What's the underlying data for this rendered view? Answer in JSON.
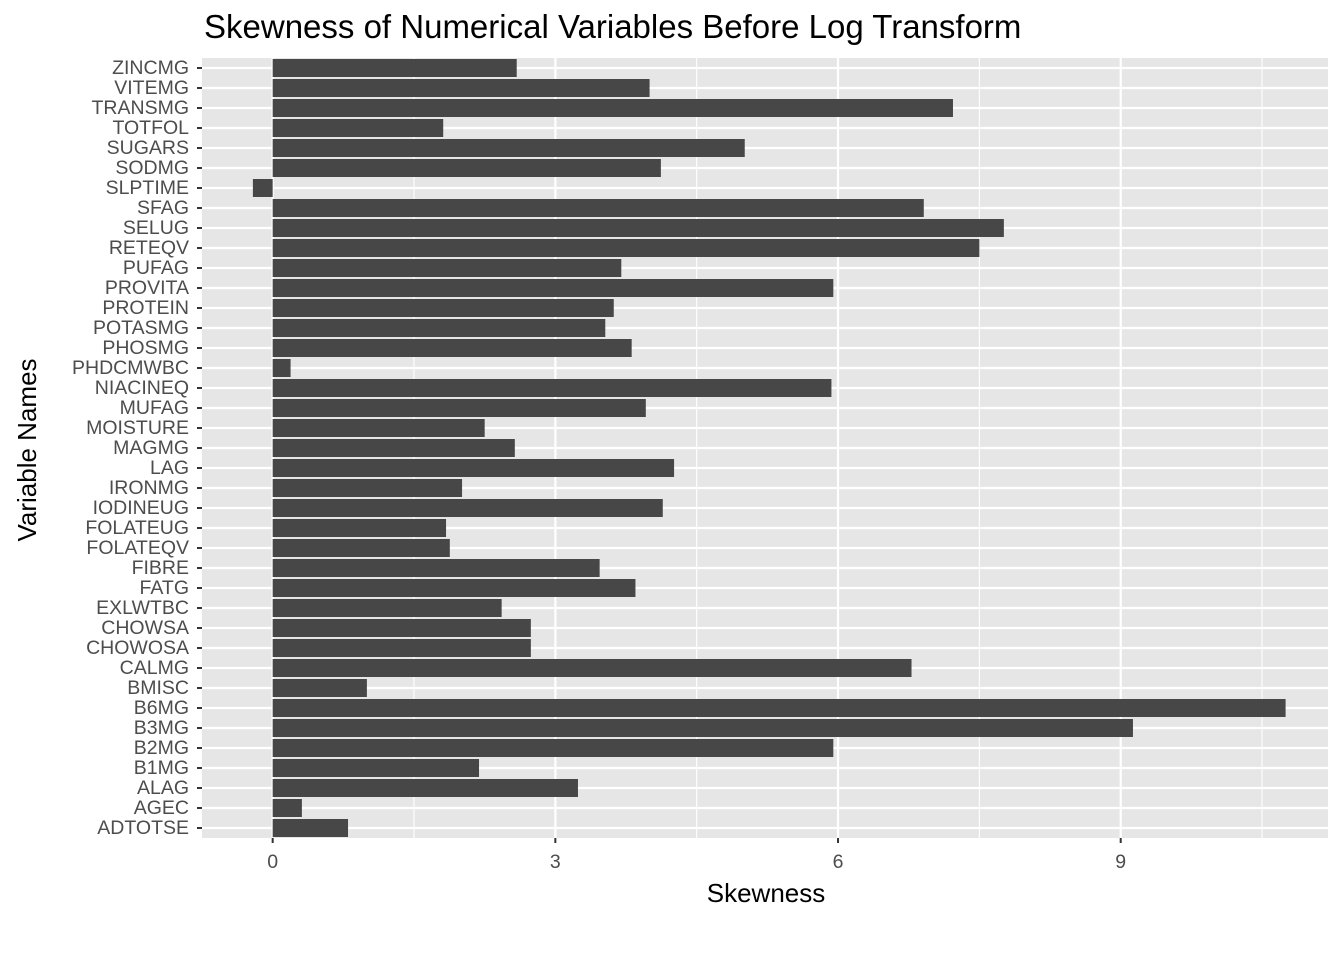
{
  "chart_data": {
    "type": "bar",
    "orientation": "horizontal",
    "title": "Skewness of Numerical Variables Before Log Transform",
    "xlabel": "Skewness",
    "ylabel": "Variable Names",
    "xlim": [
      -0.75,
      11.2
    ],
    "xticks": [
      0,
      3,
      6,
      9
    ],
    "xtick_labels": [
      "0",
      "3",
      "6",
      "9"
    ],
    "grid": true,
    "colors": {
      "bar": "#474747",
      "panel": "#e6e6e6",
      "grid": "#ffffff",
      "tick_text": "#4d4d4d"
    },
    "categories": [
      "ADTOTSE",
      "AGEC",
      "ALAG",
      "B1MG",
      "B2MG",
      "B3MG",
      "B6MG",
      "BMISC",
      "CALMG",
      "CHOWOSA",
      "CHOWSA",
      "EXLWTBC",
      "FATG",
      "FIBRE",
      "FOLATEQV",
      "FOLATEUG",
      "IODINEUG",
      "IRONMG",
      "LAG",
      "MAGMG",
      "MOISTURE",
      "MUFAG",
      "NIACINEQ",
      "PHDCMWBC",
      "PHOSMG",
      "POTASMG",
      "PROTEIN",
      "PROVITA",
      "PUFAG",
      "RETEQV",
      "SELUG",
      "SFAG",
      "SLPTIME",
      "SODMG",
      "SUGARS",
      "TOTFOL",
      "TRANSMG",
      "VITEMG",
      "ZINCMG"
    ],
    "values": [
      0.8,
      0.31,
      3.24,
      2.19,
      5.95,
      9.13,
      10.75,
      1.0,
      6.78,
      2.74,
      2.74,
      2.43,
      3.85,
      3.47,
      1.88,
      1.84,
      4.14,
      2.01,
      4.26,
      2.57,
      2.25,
      3.96,
      5.93,
      0.19,
      3.81,
      3.53,
      3.62,
      5.95,
      3.7,
      7.5,
      7.76,
      6.91,
      -0.21,
      4.12,
      5.01,
      1.81,
      7.22,
      4.0,
      2.59
    ]
  }
}
